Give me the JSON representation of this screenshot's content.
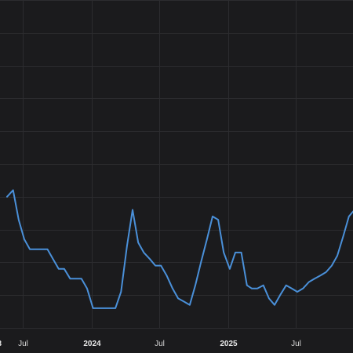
{
  "chart_data": {
    "type": "line",
    "title": "",
    "xlabel": "",
    "ylabel": "",
    "grid": true,
    "legend": "none",
    "background_color": "#1b1b1d",
    "grid_color": "#2c2c2f",
    "line_color": "#4a90d9",
    "text_color": "#d8d8d8",
    "xlim": [
      "2023-05-01",
      "2025-12-01"
    ],
    "ylim": [
      0,
      10
    ],
    "x_ticks": [
      {
        "date": "2023-07-01",
        "label": "Jul",
        "year": false
      },
      {
        "date": "2024-01-01",
        "label": "2024",
        "year": true
      },
      {
        "date": "2024-07-01",
        "label": "Jul",
        "year": false
      },
      {
        "date": "2025-01-01",
        "label": "2025",
        "year": true
      },
      {
        "date": "2025-07-01",
        "label": "Jul",
        "year": false
      }
    ],
    "left_edge_tick_fragment": "3",
    "series": [
      {
        "x": [
          "2023-05-20",
          "2023-06-05",
          "2023-06-20",
          "2023-07-05",
          "2023-07-20",
          "2023-08-05",
          "2023-08-20",
          "2023-09-05",
          "2023-09-20",
          "2023-10-05",
          "2023-10-20",
          "2023-11-05",
          "2023-11-20",
          "2023-12-05",
          "2023-12-20",
          "2024-01-05",
          "2024-01-20",
          "2024-02-05",
          "2024-02-20",
          "2024-03-05",
          "2024-03-20",
          "2024-04-05",
          "2024-04-20",
          "2024-05-05",
          "2024-05-20",
          "2024-06-05",
          "2024-06-20",
          "2024-07-05",
          "2024-07-20",
          "2024-08-05",
          "2024-08-20",
          "2024-09-05",
          "2024-09-20",
          "2024-10-05",
          "2024-10-20",
          "2024-11-05",
          "2024-11-20",
          "2024-12-05",
          "2024-12-20",
          "2025-01-05",
          "2025-01-20",
          "2025-02-05",
          "2025-02-20",
          "2025-03-05",
          "2025-03-20",
          "2025-04-05",
          "2025-04-20",
          "2025-05-05",
          "2025-05-20",
          "2025-06-05",
          "2025-06-20",
          "2025-07-05",
          "2025-07-20",
          "2025-08-05",
          "2025-08-20",
          "2025-09-05",
          "2025-09-20",
          "2025-10-05",
          "2025-10-20",
          "2025-11-05",
          "2025-11-20",
          "2025-12-05"
        ],
        "y": [
          4.0,
          4.2,
          3.3,
          2.7,
          2.4,
          2.4,
          2.4,
          2.4,
          2.1,
          1.8,
          1.8,
          1.5,
          1.5,
          1.5,
          1.2,
          0.6,
          0.6,
          0.6,
          0.6,
          0.6,
          1.1,
          2.5,
          3.6,
          2.6,
          2.3,
          2.1,
          1.9,
          1.9,
          1.6,
          1.2,
          0.9,
          0.8,
          0.7,
          1.3,
          2.0,
          2.7,
          3.4,
          3.3,
          2.3,
          1.8,
          2.3,
          2.3,
          1.3,
          1.2,
          1.2,
          1.3,
          0.9,
          0.7,
          1.0,
          1.3,
          1.2,
          1.1,
          1.2,
          1.4,
          1.5,
          1.6,
          1.7,
          1.9,
          2.2,
          2.8,
          3.4,
          3.6
        ]
      }
    ]
  }
}
